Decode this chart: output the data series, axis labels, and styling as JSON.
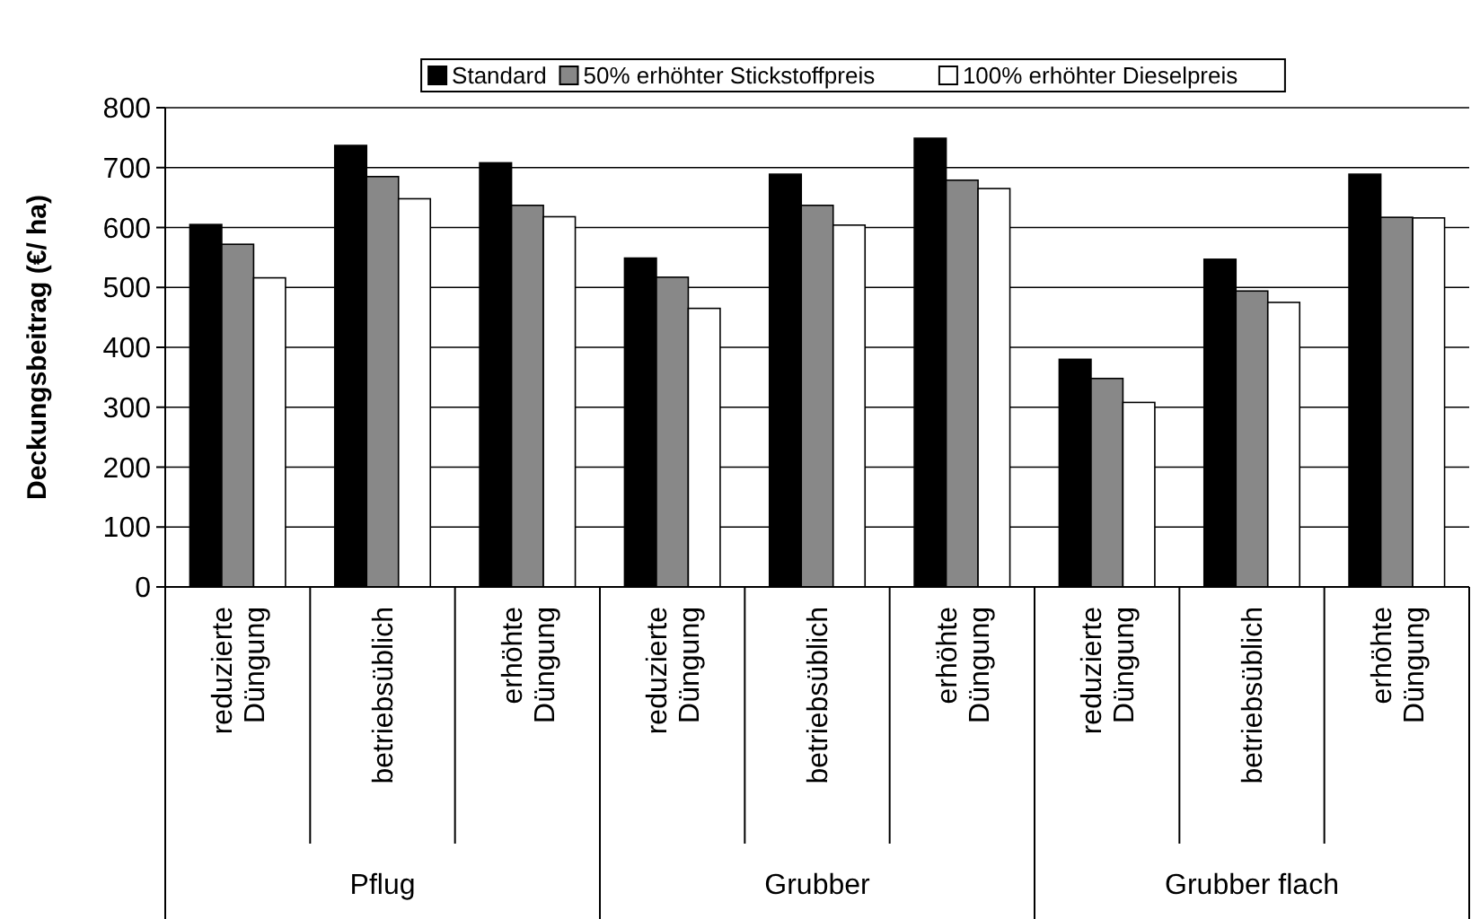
{
  "chart_data": {
    "type": "bar",
    "ylabel": "Deckungsbeitrag (€/ ha)",
    "categories": [
      "reduzierte Düngung",
      "betriebsüblich",
      "erhöhte Düngung",
      "reduzierte Düngung",
      "betriebsüblich",
      "erhöhte Düngung",
      "reduzierte Düngung",
      "betriebsüblich",
      "erhöhte Düngung"
    ],
    "annotations": [
      "Pflug",
      "Grubber",
      "Grubber flach"
    ],
    "series": [
      {
        "name": "Standard",
        "color": "#000000",
        "values": [
          605,
          737,
          708,
          549,
          689,
          749,
          380,
          547,
          689
        ]
      },
      {
        "name": "50% erhöhter Stickstoffpreis",
        "color": "#888888",
        "values": [
          572,
          685,
          637,
          517,
          637,
          679,
          348,
          494,
          617
        ]
      },
      {
        "name": "100% erhöhter Dieselpreis",
        "color": "#ffffff",
        "values": [
          516,
          648,
          618,
          465,
          604,
          665,
          308,
          475,
          616
        ]
      }
    ],
    "ylim": [
      0,
      800
    ],
    "yticks": [
      0,
      100,
      200,
      300,
      400,
      500,
      600,
      700,
      800
    ],
    "grid": "y",
    "legend": "top"
  }
}
